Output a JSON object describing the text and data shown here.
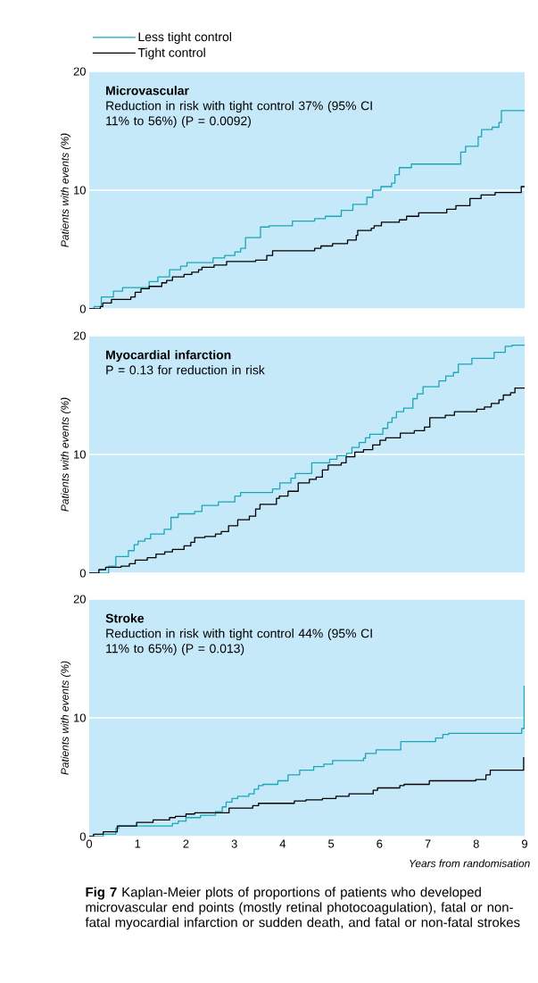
{
  "chart_data": [
    {
      "type": "step",
      "title": "Microvascular",
      "subtitle": "Reduction in risk with tight control 37% (95% CI 11% to 56%) (P = 0.0092)",
      "ylabel": "Patients with events (%)",
      "xlim": [
        0,
        9
      ],
      "ylim": [
        0,
        20
      ],
      "xticks": [
        0,
        1,
        2,
        3,
        4,
        5,
        6,
        7,
        8,
        9
      ],
      "yticks": [
        0,
        10,
        20
      ],
      "grid": "y",
      "tick_labels": "y",
      "legend": "top left",
      "series": [
        {
          "name": "Less tight control",
          "color": "#1aa6b7",
          "x": [
            0,
            0.1,
            0.25,
            0.5,
            0.69,
            1.24,
            1.42,
            1.66,
            1.89,
            2.02,
            2.56,
            2.8,
            3.01,
            3.13,
            3.23,
            3.54,
            3.72,
            4.2,
            4.66,
            4.88,
            5.21,
            5.45,
            5.74,
            5.86,
            6.03,
            6.25,
            6.32,
            6.41,
            6.66,
            7.68,
            7.78,
            8.04,
            8.11,
            8.33,
            8.47,
            8.52,
            9.0
          ],
          "values": [
            0,
            0.2,
            1.0,
            1.5,
            1.8,
            2.3,
            2.7,
            3.3,
            3.6,
            3.9,
            4.3,
            4.5,
            4.8,
            5.1,
            6.0,
            6.9,
            7.0,
            7.4,
            7.6,
            7.8,
            8.3,
            8.8,
            9.4,
            10.0,
            10.3,
            10.6,
            11.3,
            11.9,
            12.2,
            13.2,
            13.7,
            14.5,
            15.1,
            15.3,
            15.7,
            16.7,
            16.7
          ]
        },
        {
          "name": "Tight control",
          "color": "#000000",
          "x": [
            0,
            0.23,
            0.28,
            0.46,
            0.86,
            0.95,
            1.07,
            1.24,
            1.5,
            1.6,
            1.72,
            1.96,
            2.12,
            2.26,
            2.33,
            2.58,
            2.84,
            3.44,
            3.67,
            3.79,
            4.66,
            4.79,
            5.03,
            5.34,
            5.52,
            5.55,
            5.83,
            5.89,
            6.04,
            6.41,
            6.56,
            6.81,
            7.39,
            7.58,
            7.87,
            8.1,
            8.39,
            8.93,
            9.0
          ],
          "values": [
            0,
            0.2,
            0.5,
            0.8,
            1.0,
            1.4,
            1.7,
            1.9,
            2.2,
            2.4,
            2.7,
            2.9,
            3.1,
            3.3,
            3.5,
            3.7,
            4.0,
            4.1,
            4.5,
            4.9,
            5.1,
            5.3,
            5.5,
            5.8,
            6.2,
            6.6,
            6.8,
            7.0,
            7.3,
            7.5,
            7.8,
            8.1,
            8.4,
            8.7,
            9.3,
            9.6,
            9.8,
            10.3,
            10.3
          ]
        }
      ]
    },
    {
      "type": "step",
      "title": "Myocardial infarction",
      "subtitle": "P = 0.13 for reduction in risk",
      "ylabel": "Patients with events (%)",
      "xlim": [
        0,
        9
      ],
      "ylim": [
        0,
        20
      ],
      "xticks": [
        0,
        1,
        2,
        3,
        4,
        5,
        6,
        7,
        8,
        9
      ],
      "yticks": [
        0,
        10,
        20
      ],
      "grid": "y",
      "tick_labels": "y",
      "series": [
        {
          "color": "#1aa6b7",
          "x": [
            0,
            0.4,
            0.55,
            0.81,
            0.93,
            1.01,
            1.15,
            1.27,
            1.55,
            1.69,
            1.84,
            2.18,
            2.33,
            2.67,
            3.01,
            3.13,
            3.79,
            3.94,
            4.17,
            4.26,
            4.6,
            4.97,
            5.12,
            5.32,
            5.43,
            5.58,
            5.71,
            5.8,
            6.07,
            6.17,
            6.26,
            6.35,
            6.5,
            6.69,
            6.78,
            6.9,
            7.23,
            7.37,
            7.53,
            7.63,
            7.91,
            8.37,
            8.6,
            8.74,
            9.0
          ],
          "values": [
            0,
            0.6,
            1.4,
            1.9,
            2.4,
            2.7,
            2.9,
            3.3,
            3.7,
            4.7,
            5.0,
            5.2,
            5.7,
            6.0,
            6.5,
            6.8,
            7.1,
            7.6,
            8.0,
            8.4,
            9.3,
            9.6,
            9.9,
            10.1,
            10.6,
            11.0,
            11.4,
            11.7,
            12.2,
            12.7,
            13.1,
            13.6,
            13.9,
            14.7,
            15.1,
            15.7,
            16.2,
            16.6,
            16.9,
            17.6,
            18.1,
            18.6,
            19.1,
            19.2,
            19.2
          ]
        },
        {
          "color": "#000000",
          "x": [
            0,
            0.2,
            0.34,
            0.66,
            0.83,
            0.95,
            1.2,
            1.38,
            1.56,
            1.72,
            1.96,
            2.1,
            2.18,
            2.39,
            2.61,
            2.73,
            2.88,
            3.07,
            3.31,
            3.44,
            3.53,
            3.87,
            3.93,
            4.11,
            4.32,
            4.55,
            4.69,
            4.82,
            4.94,
            5.21,
            5.31,
            5.49,
            5.67,
            5.86,
            6.01,
            6.13,
            6.43,
            6.72,
            6.93,
            7.04,
            7.36,
            7.55,
            8.01,
            8.17,
            8.31,
            8.47,
            8.56,
            8.71,
            8.8,
            9.0
          ],
          "values": [
            0,
            0.3,
            0.5,
            0.6,
            0.8,
            1.1,
            1.3,
            1.6,
            1.8,
            2.0,
            2.3,
            2.6,
            3.0,
            3.1,
            3.3,
            3.5,
            4.0,
            4.5,
            4.8,
            5.4,
            5.8,
            6.3,
            6.5,
            6.9,
            7.6,
            7.9,
            8.1,
            8.7,
            9.1,
            9.3,
            9.8,
            10.2,
            10.4,
            10.8,
            11.2,
            11.4,
            11.8,
            12.0,
            12.3,
            13.1,
            13.3,
            13.6,
            13.8,
            14.0,
            14.3,
            14.6,
            15.0,
            15.2,
            15.6,
            15.6
          ]
        }
      ]
    },
    {
      "type": "step",
      "title": "Stroke",
      "subtitle": "Reduction in risk with tight control 44% (95% CI 11% to 65%) (P = 0.013)",
      "ylabel": "Patients with events (%)",
      "xlabel": "Years from randomisation",
      "xlim": [
        0,
        9
      ],
      "ylim": [
        0,
        20
      ],
      "xticks": [
        0,
        1,
        2,
        3,
        4,
        5,
        6,
        7,
        8,
        9
      ],
      "yticks": [
        0,
        10,
        20
      ],
      "grid": "y",
      "annotations": [
        "**Fig 7** Kaplan-Meier plots of proportions of patients who developed microvascular end points (mostly retinal photocoagulation), fatal or non-fatal myocardial infarction or sudden death, and fatal or non-fatal strokes"
      ],
      "series": [
        {
          "color": "#1aa6b7",
          "x": [
            0,
            0.29,
            0.55,
            0.61,
            1.72,
            1.84,
            2.0,
            2.3,
            2.61,
            2.75,
            2.83,
            2.95,
            3.07,
            3.3,
            3.41,
            3.5,
            3.59,
            3.9,
            4.11,
            4.35,
            4.64,
            4.85,
            5.03,
            5.67,
            5.71,
            5.93,
            6.44,
            7.16,
            7.31,
            7.43,
            8.94,
            8.99
          ],
          "values": [
            0,
            0.2,
            0.7,
            0.9,
            1.1,
            1.3,
            1.6,
            1.8,
            2.1,
            2.5,
            2.9,
            3.2,
            3.4,
            3.6,
            4.0,
            4.3,
            4.4,
            4.7,
            5.2,
            5.6,
            5.9,
            6.1,
            6.4,
            6.6,
            7.0,
            7.3,
            8.0,
            8.3,
            8.6,
            8.7,
            9.1,
            12.7
          ]
        },
        {
          "color": "#000000",
          "x": [
            0,
            0.09,
            0.29,
            0.58,
            0.98,
            1.32,
            1.66,
            1.78,
            2.0,
            2.18,
            2.89,
            3.38,
            3.5,
            4.24,
            4.48,
            4.82,
            5.1,
            5.37,
            5.87,
            5.96,
            6.42,
            6.51,
            7.03,
            7.99,
            8.2,
            8.29,
            8.98
          ],
          "values": [
            0,
            0.2,
            0.4,
            0.9,
            1.2,
            1.4,
            1.6,
            1.7,
            1.9,
            2.0,
            2.4,
            2.6,
            2.8,
            3.0,
            3.1,
            3.2,
            3.4,
            3.6,
            3.9,
            4.1,
            4.3,
            4.4,
            4.7,
            4.8,
            5.2,
            5.6,
            6.7
          ]
        }
      ]
    }
  ]
}
